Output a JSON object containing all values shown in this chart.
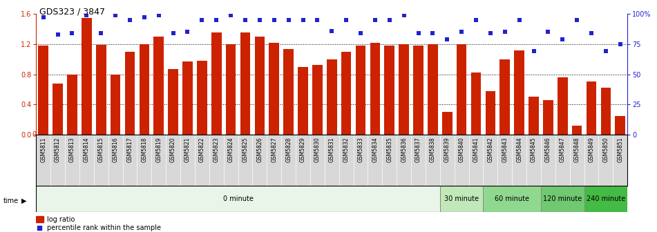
{
  "title": "GDS323 / 3847",
  "samples": [
    "GSM5811",
    "GSM5812",
    "GSM5813",
    "GSM5814",
    "GSM5815",
    "GSM5816",
    "GSM5817",
    "GSM5818",
    "GSM5819",
    "GSM5820",
    "GSM5821",
    "GSM5822",
    "GSM5823",
    "GSM5824",
    "GSM5825",
    "GSM5826",
    "GSM5827",
    "GSM5828",
    "GSM5829",
    "GSM5830",
    "GSM5831",
    "GSM5832",
    "GSM5833",
    "GSM5834",
    "GSM5835",
    "GSM5836",
    "GSM5837",
    "GSM5838",
    "GSM5839",
    "GSM5840",
    "GSM5841",
    "GSM5842",
    "GSM5843",
    "GSM5844",
    "GSM5845",
    "GSM5846",
    "GSM5847",
    "GSM5848",
    "GSM5849",
    "GSM5850",
    "GSM5851"
  ],
  "log_ratio": [
    1.18,
    0.68,
    0.8,
    1.55,
    1.19,
    0.8,
    1.1,
    1.2,
    1.3,
    0.87,
    0.97,
    0.98,
    1.35,
    1.2,
    1.35,
    1.3,
    1.22,
    1.13,
    0.9,
    0.92,
    1.0,
    1.1,
    1.18,
    1.22,
    1.18,
    1.2,
    1.18,
    1.2,
    0.3,
    1.2,
    0.82,
    0.58,
    1.0,
    1.12,
    0.5,
    0.46,
    0.76,
    0.12,
    0.7,
    0.62,
    0.25
  ],
  "percentile": [
    97,
    83,
    84,
    99,
    84,
    99,
    95,
    97,
    99,
    84,
    85,
    95,
    95,
    99,
    95,
    95,
    95,
    95,
    95,
    95,
    86,
    95,
    84,
    95,
    95,
    99,
    84,
    84,
    79,
    85,
    95,
    84,
    85,
    95,
    69,
    85,
    79,
    95,
    84,
    69,
    75
  ],
  "time_groups": [
    {
      "label": "0 minute",
      "start": 0,
      "end": 28,
      "color": "#e8f5e8"
    },
    {
      "label": "30 minute",
      "start": 28,
      "end": 31,
      "color": "#c0e8b8"
    },
    {
      "label": "60 minute",
      "start": 31,
      "end": 35,
      "color": "#90d890"
    },
    {
      "label": "120 minute",
      "start": 35,
      "end": 38,
      "color": "#70c870"
    },
    {
      "label": "240 minute",
      "start": 38,
      "end": 41,
      "color": "#44bb44"
    }
  ],
  "bar_color": "#cc2200",
  "dot_color": "#2222cc",
  "ylim_left": [
    0,
    1.6
  ],
  "ylim_right": [
    0,
    100
  ],
  "yticks_left": [
    0,
    0.4,
    0.8,
    1.2,
    1.6
  ],
  "yticks_right": [
    0,
    25,
    50,
    75,
    100
  ],
  "hgrid_lines": [
    0.4,
    0.8,
    1.2
  ],
  "background_color": "#ffffff"
}
